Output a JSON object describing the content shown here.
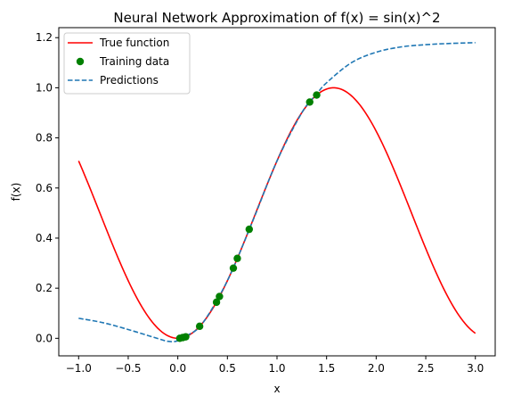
{
  "chart_data": {
    "type": "line",
    "title": "Neural Network Approximation of f(x) = sin(x)^2",
    "xlabel": "x",
    "ylabel": "f(x)",
    "xlim": [
      -1.2,
      3.2
    ],
    "ylim": [
      -0.07,
      1.24
    ],
    "xticks": [
      -1.0,
      -0.5,
      0.0,
      0.5,
      1.0,
      1.5,
      2.0,
      2.5,
      3.0
    ],
    "xtick_labels": [
      "−1.0",
      "−0.5",
      "0.0",
      "0.5",
      "1.0",
      "1.5",
      "2.0",
      "2.5",
      "3.0"
    ],
    "yticks": [
      0.0,
      0.2,
      0.4,
      0.6,
      0.8,
      1.0,
      1.2
    ],
    "ytick_labels": [
      "0.0",
      "0.2",
      "0.4",
      "0.6",
      "0.8",
      "1.0",
      "1.2"
    ],
    "grid": false,
    "legend_position": "top-left",
    "series": [
      {
        "name": "True function",
        "kind": "line",
        "style": "solid",
        "color": "#ff0000",
        "function": "sin(x)^2",
        "x_range": [
          -1.0,
          3.0
        ],
        "x": [
          -1.0,
          -0.75,
          -0.5,
          -0.25,
          0.0,
          0.25,
          0.5,
          0.75,
          1.0,
          1.25,
          1.5,
          1.571,
          1.75,
          2.0,
          2.25,
          2.5,
          2.75,
          3.0
        ],
        "y": [
          0.708,
          0.463,
          0.23,
          0.061,
          0.0,
          0.061,
          0.23,
          0.463,
          0.708,
          0.9,
          0.995,
          1.0,
          0.968,
          0.827,
          0.605,
          0.358,
          0.145,
          0.02
        ]
      },
      {
        "name": "Training data",
        "kind": "scatter",
        "color": "#008000",
        "x": [
          0.02,
          0.05,
          0.08,
          0.22,
          0.39,
          0.42,
          0.56,
          0.6,
          0.72,
          1.33,
          1.4
        ],
        "y": [
          0.0,
          0.003,
          0.006,
          0.048,
          0.144,
          0.167,
          0.28,
          0.319,
          0.435,
          0.943,
          0.971
        ]
      },
      {
        "name": "Predictions",
        "kind": "line",
        "style": "dashed",
        "color": "#1f77b4",
        "x": [
          -1.0,
          -0.75,
          -0.5,
          -0.25,
          -0.1,
          0.0,
          0.1,
          0.25,
          0.5,
          0.75,
          1.0,
          1.25,
          1.4,
          1.5,
          1.75,
          2.0,
          2.25,
          2.5,
          2.75,
          3.0
        ],
        "y": [
          0.08,
          0.062,
          0.035,
          0.005,
          -0.012,
          -0.01,
          0.012,
          0.06,
          0.23,
          0.463,
          0.708,
          0.9,
          0.975,
          1.02,
          1.1,
          1.142,
          1.163,
          1.172,
          1.177,
          1.18
        ]
      }
    ]
  }
}
